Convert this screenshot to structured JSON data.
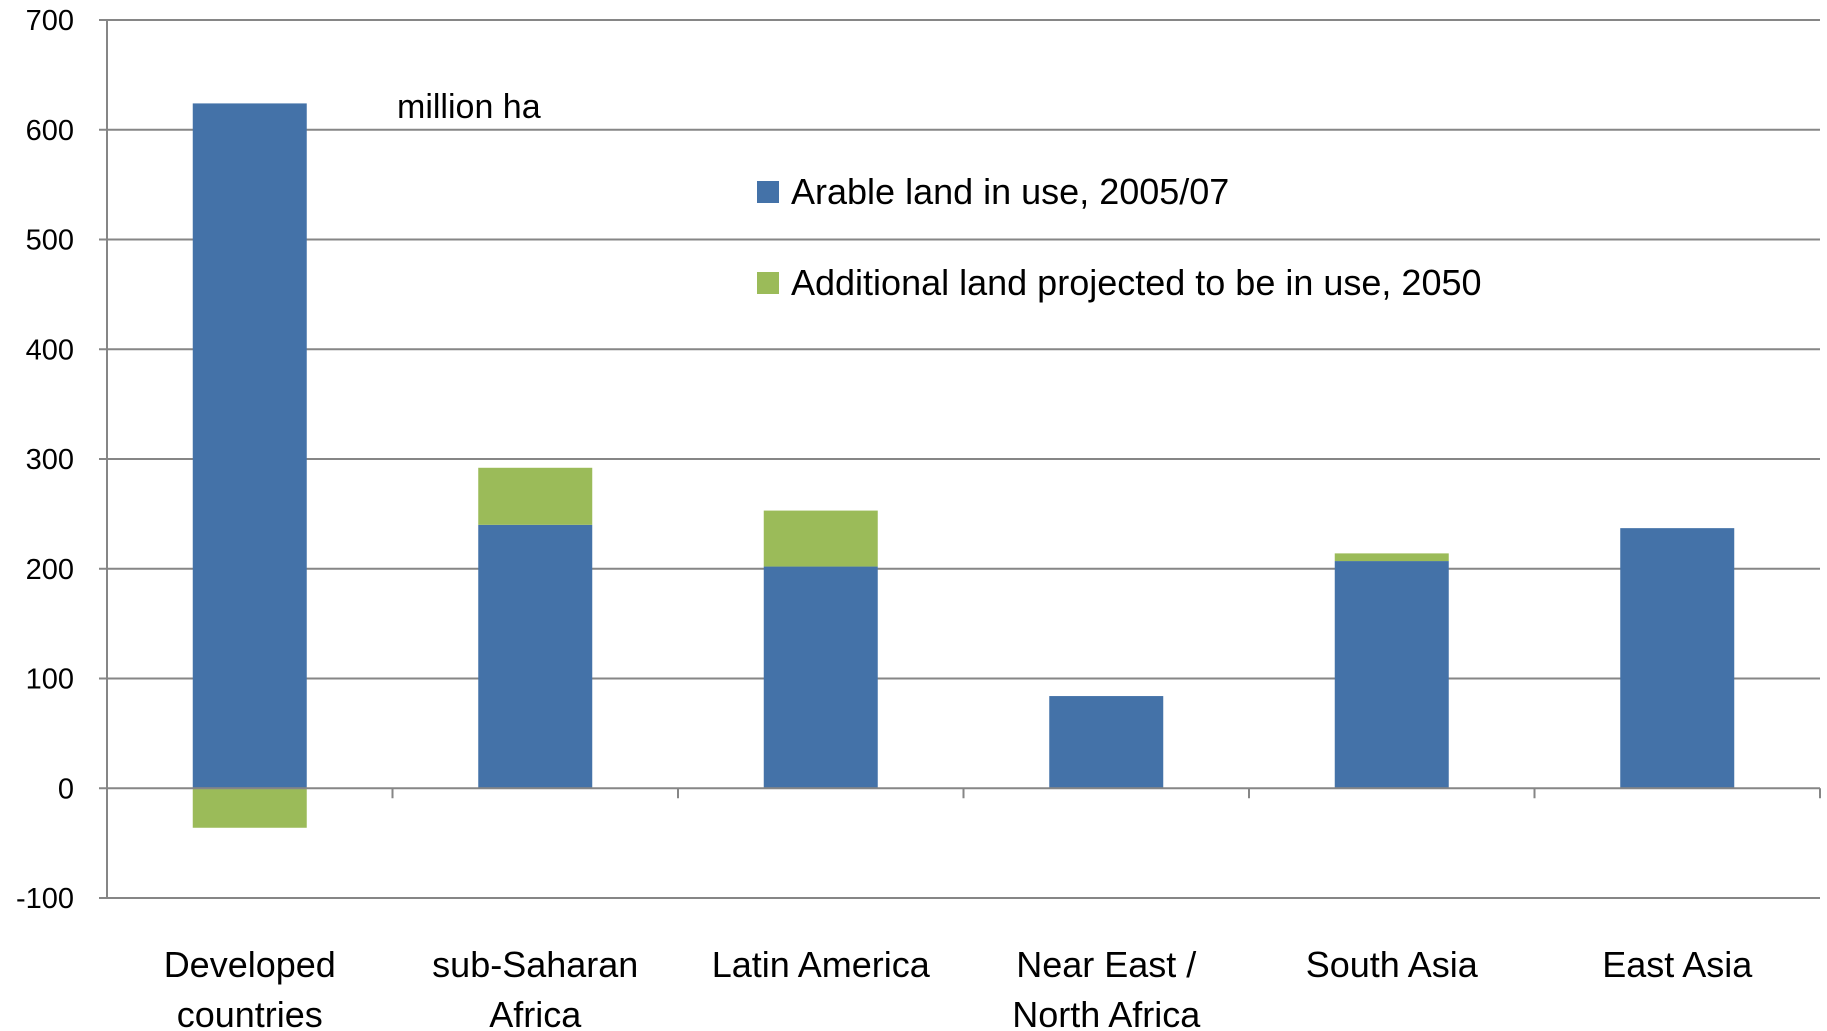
{
  "chart_data": {
    "type": "bar",
    "stacked": true,
    "categories": [
      [
        "Developed",
        "countries"
      ],
      [
        "sub-Saharan",
        "Africa"
      ],
      [
        "Latin America"
      ],
      [
        "Near East /",
        "North Africa"
      ],
      [
        "South Asia"
      ],
      [
        "East Asia"
      ]
    ],
    "series": [
      {
        "name": "Arable land in use, 2005/07",
        "color": "#4472A8",
        "values": [
          624,
          240,
          202,
          84,
          207,
          237
        ]
      },
      {
        "name": "Additional land projected to be in use, 2050",
        "color": "#9BBB59",
        "values": [
          -36,
          52,
          51,
          0,
          7,
          0
        ]
      }
    ],
    "unit_label": "million ha",
    "ylim": [
      -100,
      700
    ],
    "yticks": [
      -100,
      0,
      100,
      200,
      300,
      400,
      500,
      600,
      700
    ],
    "grid": true,
    "legend_position": "top-center"
  }
}
